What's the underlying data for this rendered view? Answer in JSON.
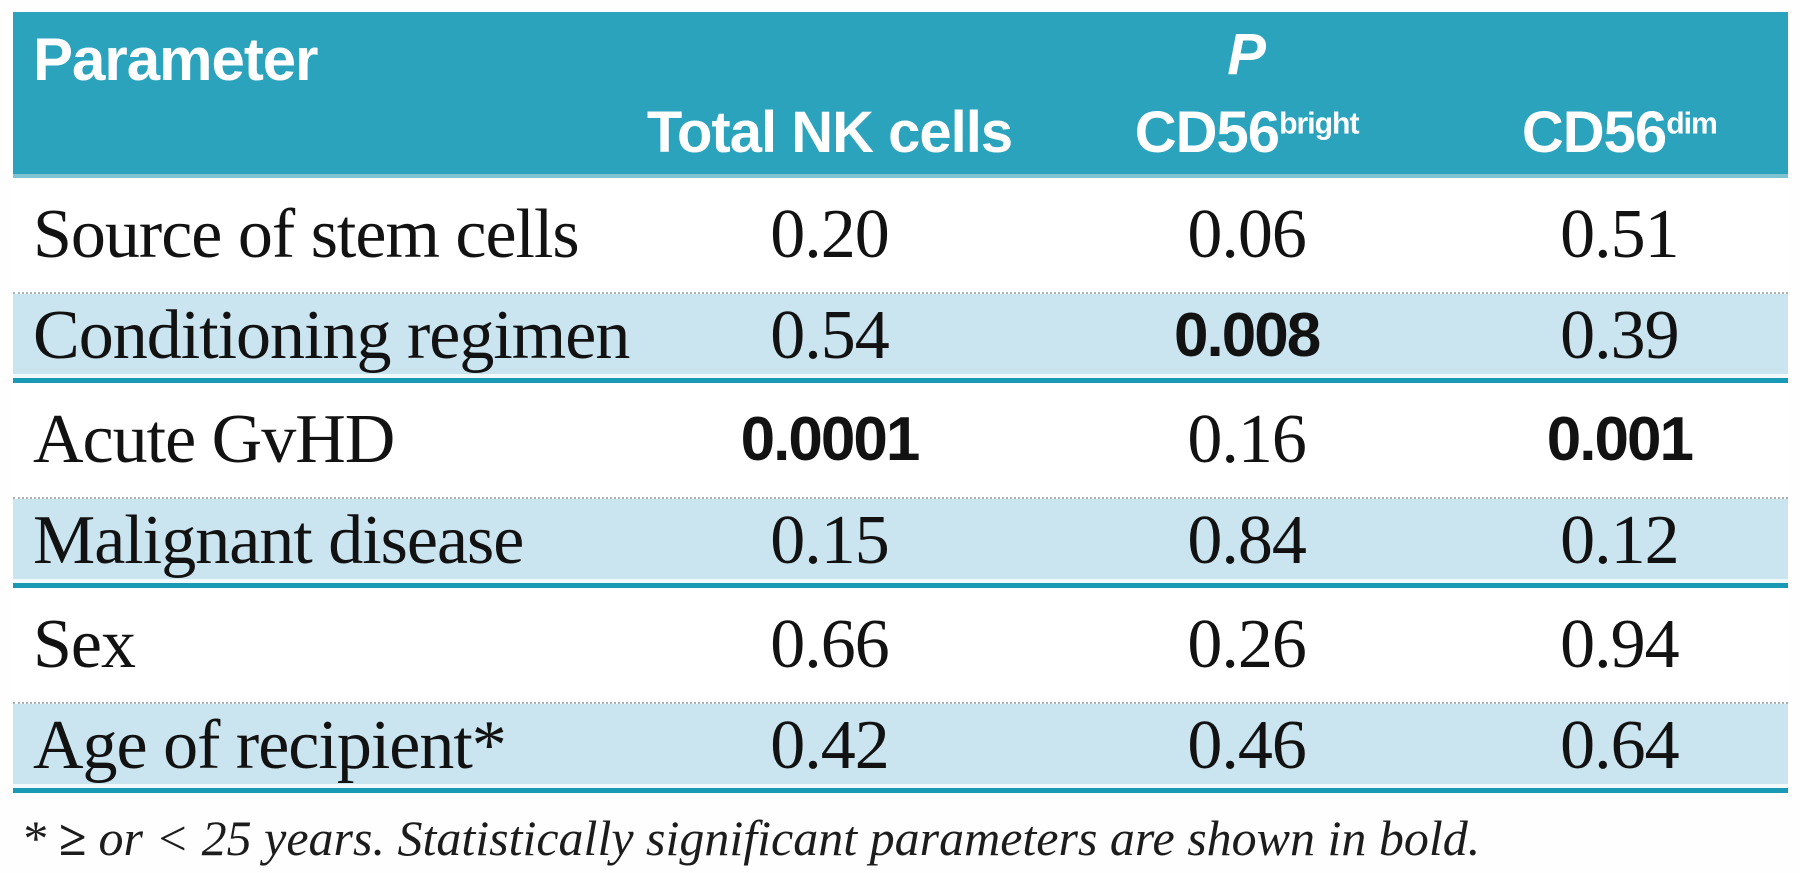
{
  "table": {
    "header": {
      "parameter_label": "Parameter",
      "p_label": "P",
      "columns": [
        {
          "base": "Total NK cells",
          "sup": ""
        },
        {
          "base": "CD56",
          "sup": "bright"
        },
        {
          "base": "CD56",
          "sup": "dim"
        }
      ]
    },
    "rows": [
      {
        "label": "Source of stem cells",
        "values": [
          "0.20",
          "0.06",
          "0.51"
        ],
        "bold": [
          false,
          false,
          false
        ]
      },
      {
        "label": "Conditioning regimen",
        "values": [
          "0.54",
          "0.008",
          "0.39"
        ],
        "bold": [
          false,
          true,
          false
        ]
      },
      {
        "label": "Acute GvHD",
        "values": [
          "0.0001",
          "0.16",
          "0.001"
        ],
        "bold": [
          true,
          false,
          true
        ]
      },
      {
        "label": "Malignant disease",
        "values": [
          "0.15",
          "0.84",
          "0.12"
        ],
        "bold": [
          false,
          false,
          false
        ]
      },
      {
        "label": "Sex",
        "values": [
          "0.66",
          "0.26",
          "0.94"
        ],
        "bold": [
          false,
          false,
          false
        ]
      },
      {
        "label": "Age of recipient*",
        "values": [
          "0.42",
          "0.46",
          "0.64"
        ],
        "bold": [
          false,
          false,
          false
        ]
      }
    ],
    "footnote": {
      "marker": "* ",
      "geq": "≥",
      "text": " or < 25 years. Statistically significant parameters are shown in bold."
    }
  },
  "colors": {
    "header_bg": "#2ba3bd",
    "header_bottom_edge": "#7ec3d2",
    "row_alt_bg": "#cbe5f0",
    "rule_teal": "#1a99b4",
    "dotted_separator": "#a8b2b4",
    "header_text": "#ffffff",
    "body_text": "#121212"
  },
  "chart_data": {
    "type": "table",
    "title": "P values by NK cell subset",
    "columns": [
      "Parameter",
      "Total NK cells",
      "CD56bright",
      "CD56dim"
    ],
    "rows": [
      [
        "Source of stem cells",
        0.2,
        0.06,
        0.51
      ],
      [
        "Conditioning regimen",
        0.54,
        0.008,
        0.39
      ],
      [
        "Acute GvHD",
        0.0001,
        0.16,
        0.001
      ],
      [
        "Malignant disease",
        0.15,
        0.84,
        0.12
      ],
      [
        "Sex",
        0.66,
        0.26,
        0.94
      ],
      [
        "Age of recipient*",
        0.42,
        0.46,
        0.64
      ]
    ],
    "significant_cells_bold": [
      [
        "Conditioning regimen",
        "CD56bright"
      ],
      [
        "Acute GvHD",
        "Total NK cells"
      ],
      [
        "Acute GvHD",
        "CD56dim"
      ]
    ],
    "footnote": "* ≥ or < 25 years. Statistically significant parameters are shown in bold."
  }
}
